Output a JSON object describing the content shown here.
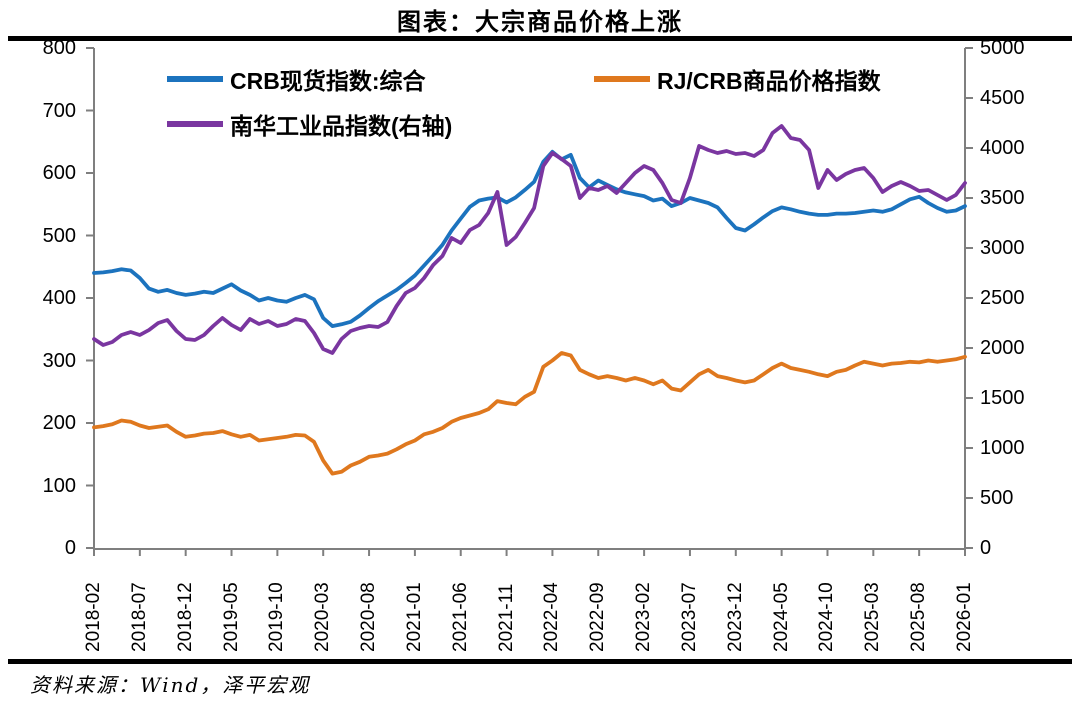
{
  "title": "图表：大宗商品价格上涨",
  "source": "资料来源：Wind，泽平宏观",
  "colors": {
    "blue": "#1C73BE",
    "orange": "#DF781E",
    "purple": "#7A36A0",
    "axis": "#7F7F7F",
    "rule": "#000000"
  },
  "legend": {
    "items": [
      {
        "label": "CRB现货指数:综合",
        "color": "#1C73BE"
      },
      {
        "label": "RJ/CRB商品价格指数",
        "color": "#DF781E"
      },
      {
        "label": "南华工业品指数(右轴)",
        "color": "#7A36A0"
      }
    ]
  },
  "chart_data": {
    "type": "line",
    "title": "图表：大宗商品价格上涨",
    "frequency": "monthly",
    "x_range": [
      "2018-02",
      "2026-01"
    ],
    "grid": false,
    "legend_position": "top-left-inside",
    "x_tick_labels": [
      "2018-02",
      "2018-07",
      "2018-12",
      "2019-05",
      "2019-10",
      "2020-03",
      "2020-08",
      "2021-01",
      "2021-06",
      "2021-11",
      "2022-04",
      "2022-09",
      "2023-02",
      "2023-07",
      "2023-12",
      "2024-05",
      "2024-10",
      "2025-03",
      "2025-08",
      "2026-01"
    ],
    "left_axis": {
      "min": 0,
      "max": 800,
      "tick_step": 100,
      "tick_labels": [
        "0",
        "100",
        "200",
        "300",
        "400",
        "500",
        "600",
        "700",
        "800"
      ]
    },
    "right_axis": {
      "min": 0,
      "max": 5000,
      "tick_step": 500,
      "tick_labels": [
        "0",
        "500",
        "1000",
        "1500",
        "2000",
        "2500",
        "3000",
        "3500",
        "4000",
        "4500",
        "5000"
      ]
    },
    "series": [
      {
        "name": "CRB现货指数:综合",
        "axis": "left",
        "color": "#1C73BE",
        "values": [
          440,
          441,
          443,
          446,
          444,
          432,
          415,
          410,
          413,
          408,
          405,
          407,
          410,
          408,
          415,
          422,
          412,
          405,
          396,
          400,
          396,
          394,
          400,
          405,
          398,
          368,
          355,
          358,
          362,
          372,
          384,
          395,
          404,
          413,
          424,
          436,
          452,
          468,
          485,
          508,
          527,
          546,
          556,
          559,
          561,
          553,
          561,
          573,
          586,
          618,
          634,
          622,
          629,
          592,
          577,
          588,
          581,
          574,
          569,
          566,
          563,
          556,
          559,
          547,
          552,
          560,
          556,
          552,
          545,
          528,
          512,
          508,
          518,
          529,
          539,
          545,
          542,
          538,
          535,
          533,
          533,
          535,
          535,
          536,
          538,
          540,
          538,
          542,
          550,
          558,
          562,
          552,
          544,
          538,
          540,
          547
        ]
      },
      {
        "name": "RJ/CRB商品价格指数",
        "axis": "left",
        "color": "#DF781E",
        "values": [
          193,
          195,
          198,
          204,
          202,
          196,
          192,
          194,
          196,
          186,
          178,
          180,
          183,
          184,
          187,
          182,
          178,
          181,
          172,
          174,
          176,
          178,
          181,
          180,
          170,
          140,
          119,
          122,
          132,
          138,
          146,
          148,
          151,
          158,
          166,
          172,
          182,
          186,
          192,
          202,
          208,
          212,
          216,
          222,
          235,
          232,
          230,
          242,
          250,
          290,
          300,
          312,
          308,
          285,
          278,
          272,
          275,
          272,
          268,
          272,
          268,
          262,
          268,
          255,
          252,
          265,
          278,
          285,
          275,
          272,
          268,
          265,
          268,
          278,
          288,
          295,
          288,
          285,
          282,
          278,
          275,
          282,
          285,
          292,
          298,
          295,
          292,
          295,
          296,
          298,
          297,
          300,
          298,
          300,
          302,
          306
        ]
      },
      {
        "name": "南华工业品指数(右轴)",
        "axis": "right",
        "color": "#7A36A0",
        "values": [
          2090,
          2030,
          2060,
          2130,
          2160,
          2130,
          2180,
          2250,
          2280,
          2170,
          2090,
          2080,
          2130,
          2220,
          2300,
          2230,
          2180,
          2290,
          2240,
          2270,
          2220,
          2240,
          2290,
          2270,
          2150,
          1990,
          1950,
          2090,
          2170,
          2200,
          2220,
          2210,
          2260,
          2420,
          2550,
          2600,
          2700,
          2830,
          2920,
          3100,
          3050,
          3180,
          3230,
          3350,
          3560,
          3030,
          3110,
          3250,
          3400,
          3820,
          3950,
          3890,
          3820,
          3500,
          3600,
          3580,
          3620,
          3550,
          3650,
          3750,
          3820,
          3780,
          3650,
          3480,
          3450,
          3700,
          4020,
          3980,
          3950,
          3970,
          3940,
          3950,
          3920,
          3980,
          4150,
          4220,
          4100,
          4080,
          3980,
          3600,
          3780,
          3680,
          3740,
          3780,
          3800,
          3700,
          3560,
          3620,
          3660,
          3620,
          3570,
          3580,
          3530,
          3480,
          3530,
          3650
        ]
      }
    ]
  }
}
